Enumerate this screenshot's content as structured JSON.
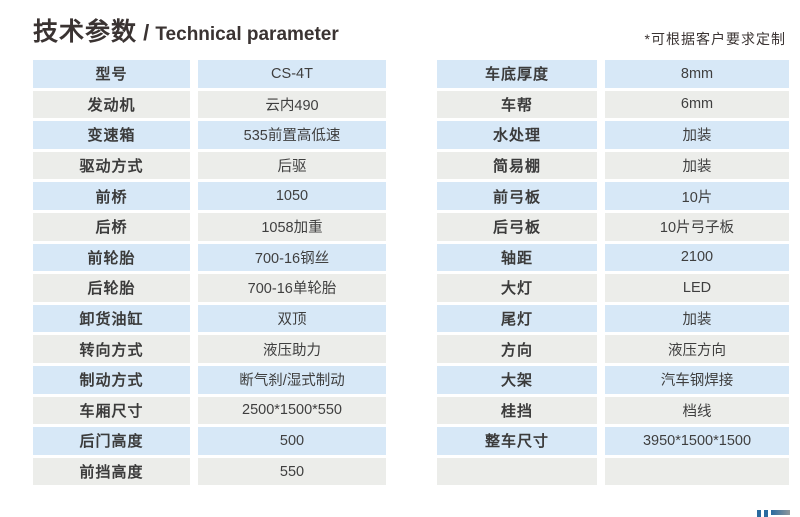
{
  "header": {
    "title_zh": "技术参数",
    "title_sep": " / ",
    "title_en": "Technical parameter",
    "note": "*可根据客户要求定制"
  },
  "tables": {
    "left": {
      "rows": [
        {
          "label": "型号",
          "value": "CS-4T"
        },
        {
          "label": "发动机",
          "value": "云内490"
        },
        {
          "label": "变速箱",
          "value": "535前置高低速"
        },
        {
          "label": "驱动方式",
          "value": "后驱"
        },
        {
          "label": "前桥",
          "value": "1050"
        },
        {
          "label": "后桥",
          "value": "1058加重"
        },
        {
          "label": "前轮胎",
          "value": "700-16钢丝"
        },
        {
          "label": "后轮胎",
          "value": "700-16单轮胎"
        },
        {
          "label": "卸货油缸",
          "value": "双顶"
        },
        {
          "label": "转向方式",
          "value": "液压助力"
        },
        {
          "label": "制动方式",
          "value": "断气刹/湿式制动"
        },
        {
          "label": "车厢尺寸",
          "value": "2500*1500*550"
        },
        {
          "label": "后门高度",
          "value": "500"
        },
        {
          "label": "前挡高度",
          "value": "550"
        }
      ]
    },
    "right": {
      "rows": [
        {
          "label": "车底厚度",
          "value": "8mm"
        },
        {
          "label": "车帮",
          "value": "6mm"
        },
        {
          "label": "水处理",
          "value": "加装"
        },
        {
          "label": "简易棚",
          "value": "加装"
        },
        {
          "label": "前弓板",
          "value": "10片"
        },
        {
          "label": "后弓板",
          "value": "10片弓子板"
        },
        {
          "label": "轴距",
          "value": "2100"
        },
        {
          "label": "大灯",
          "value": "LED"
        },
        {
          "label": "尾灯",
          "value": "加装"
        },
        {
          "label": "方向",
          "value": "液压方向"
        },
        {
          "label": "大架",
          "value": "汽车钢焊接"
        },
        {
          "label": "桂挡",
          "value": "档线"
        },
        {
          "label": "整车尺寸",
          "value": "3950*1500*1500"
        },
        {
          "label": "",
          "value": ""
        }
      ]
    }
  },
  "colors": {
    "row_blue": "#d7e8f7",
    "row_gray": "#ecedea",
    "ink": "#3a3332",
    "accent_blue": "#2a6a9f",
    "fragment_end": "#8f979b"
  }
}
